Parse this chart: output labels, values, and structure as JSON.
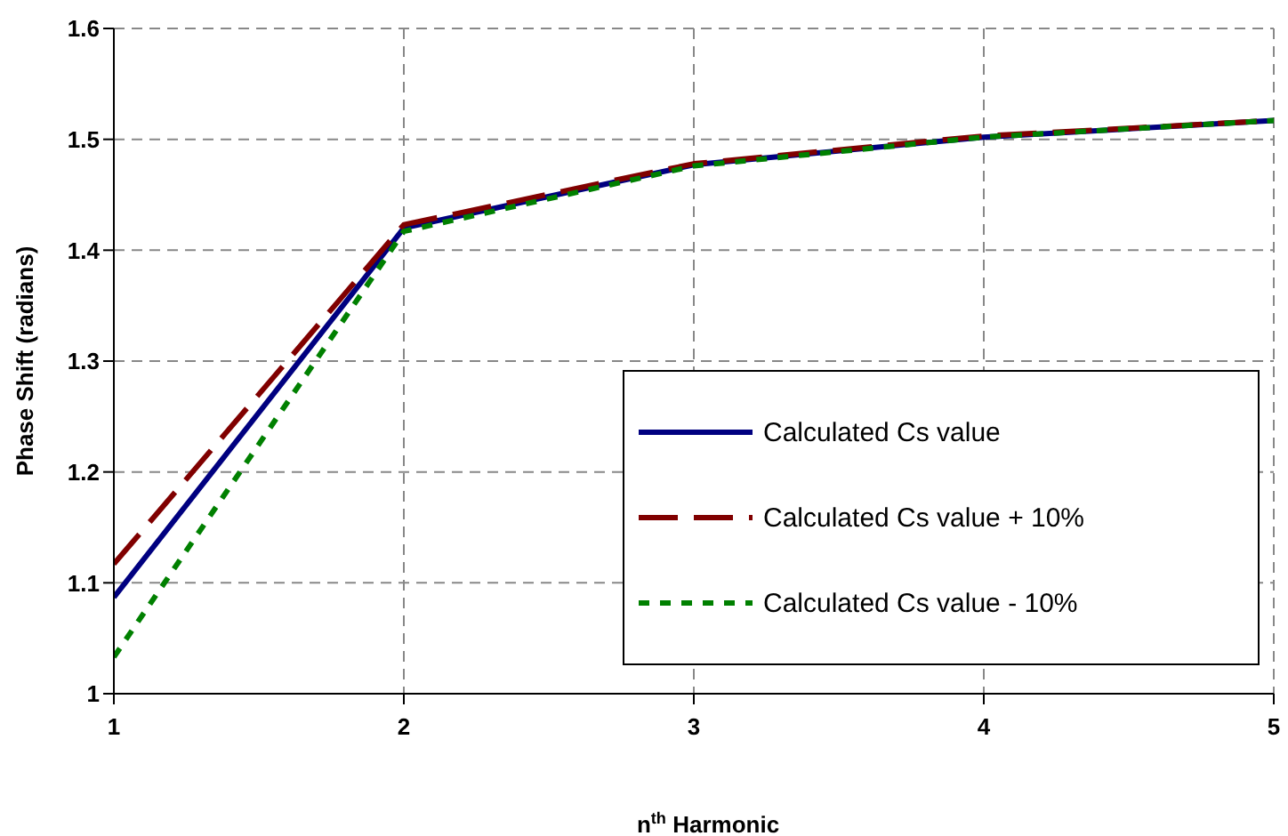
{
  "chart_data": {
    "type": "line",
    "xlabel": "n$^{th}$ Harmonic",
    "ylabel": "Phase Shift (radians)",
    "x": [
      1,
      2,
      3,
      4,
      5
    ],
    "series": [
      {
        "name": "Calculated Cs value",
        "color": "#000080",
        "values": [
          1.087,
          1.42,
          1.477,
          1.502,
          1.517
        ],
        "line_style": "solid"
      },
      {
        "name": "Calculated Cs value + 10%",
        "color": "#800000",
        "values": [
          1.117,
          1.423,
          1.478,
          1.503,
          1.517
        ],
        "line_style": "dashed"
      },
      {
        "name": "Calculated Cs value - 10%",
        "color": "#008000",
        "values": [
          1.033,
          1.417,
          1.476,
          1.502,
          1.517
        ],
        "line_style": "dotted"
      }
    ],
    "xlim": [
      1,
      5
    ],
    "xticks": [
      1,
      2,
      3,
      4,
      5
    ],
    "ylim": [
      1,
      1.6
    ],
    "yticks": [
      1,
      1.1,
      1.2,
      1.3,
      1.4,
      1.5,
      1.6
    ],
    "grid": true,
    "legend": "right",
    "marker": "none"
  }
}
